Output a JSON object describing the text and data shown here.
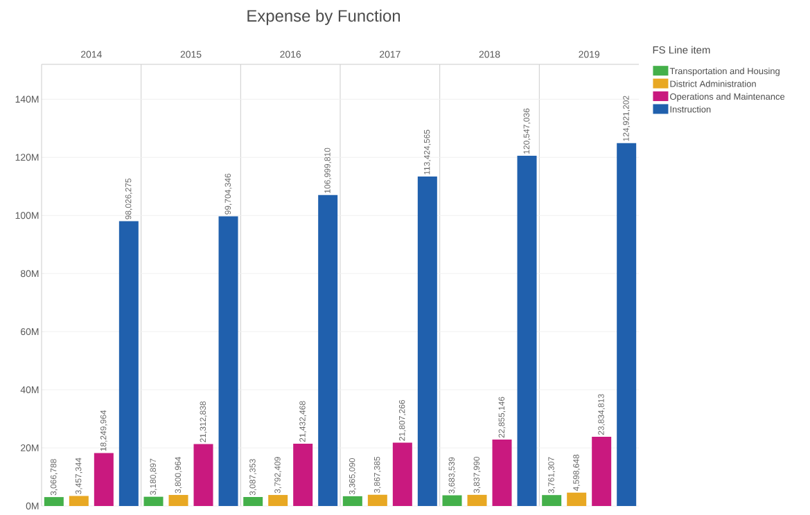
{
  "chart_data": {
    "type": "bar",
    "title": "Expense by Function",
    "legend_title": "FS Line item",
    "categories": [
      "2014",
      "2015",
      "2016",
      "2017",
      "2018",
      "2019"
    ],
    "series": [
      {
        "name": "Transportation and Housing",
        "color": "#44b04a",
        "values": [
          3066788,
          3180897,
          3087353,
          3365090,
          3683539,
          3761307
        ],
        "value_labels": [
          "3,066,788",
          "3,180,897",
          "3,087,353",
          "3,365,090",
          "3,683,539",
          "3,761,307"
        ]
      },
      {
        "name": "District Administration",
        "color": "#e8a823",
        "values": [
          3457344,
          3800964,
          3792409,
          3867385,
          3837990,
          4598648
        ],
        "value_labels": [
          "3,457,344",
          "3,800,964",
          "3,792,409",
          "3,867,385",
          "3,837,990",
          "4,598,648"
        ]
      },
      {
        "name": "Operations and Maintenance",
        "color": "#c9197f",
        "values": [
          18249964,
          21312838,
          21432468,
          21807266,
          22855146,
          23834813
        ],
        "value_labels": [
          "18,249,964",
          "21,312,838",
          "21,432,468",
          "21,807,266",
          "22,855,146",
          "23,834,813"
        ]
      },
      {
        "name": "Instruction",
        "color": "#2060ad",
        "values": [
          98026275,
          99704346,
          106999810,
          113424565,
          120547036,
          124921202
        ],
        "value_labels": [
          "98,026,275",
          "99,704,346",
          "106,999,810",
          "113,424,565",
          "120,547,036",
          "124,921,202"
        ]
      }
    ],
    "ylim": [
      0,
      152000000
    ],
    "yticks": [
      {
        "value": 0,
        "label": "0M"
      },
      {
        "value": 20000000,
        "label": "20M"
      },
      {
        "value": 40000000,
        "label": "40M"
      },
      {
        "value": 60000000,
        "label": "60M"
      },
      {
        "value": 80000000,
        "label": "80M"
      },
      {
        "value": 100000000,
        "label": "100M"
      },
      {
        "value": 120000000,
        "label": "120M"
      },
      {
        "value": 140000000,
        "label": "140M"
      }
    ],
    "grid": "y",
    "legend": "top right"
  }
}
